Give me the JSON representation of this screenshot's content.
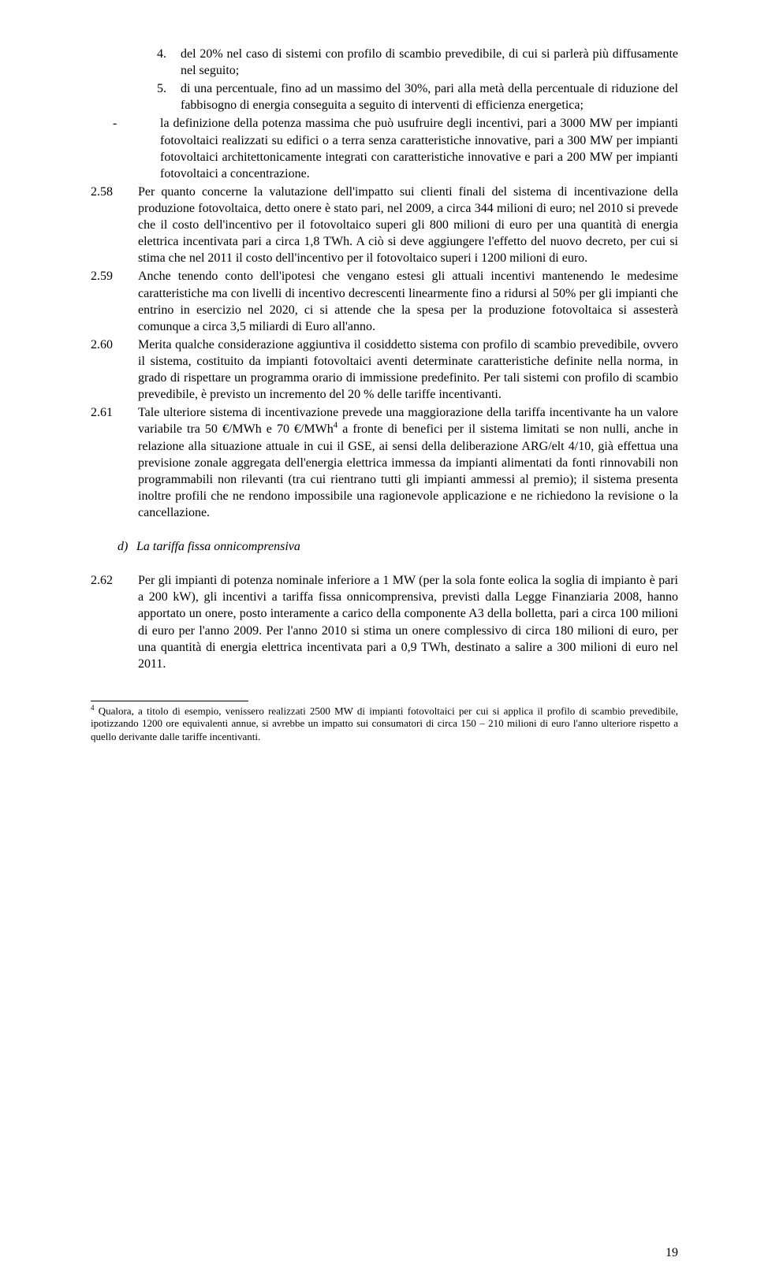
{
  "list": {
    "item4": {
      "marker": "4.",
      "text": "del 20% nel caso di sistemi con profilo di scambio prevedibile, di cui si parlerà più diffusamente nel seguito;"
    },
    "item5": {
      "marker": "5.",
      "text": "di una percentuale, fino ad un massimo del 30%, pari alla metà della percentuale di riduzione del fabbisogno di energia conseguita a seguito di interventi di efficienza energetica;"
    },
    "itemDash": {
      "marker": "-",
      "text": "la definizione della potenza massima che può usufruire degli incentivi, pari a 3000 MW per impianti fotovoltaici realizzati su edifici o a terra senza caratteristiche innovative, pari a 300 MW per impianti fotovoltaici architettonicamente integrati con caratteristiche innovative e pari a 200 MW per impianti fotovoltaici a concentrazione."
    }
  },
  "paras": {
    "p258": {
      "num": "2.58",
      "text": "Per quanto concerne la valutazione dell'impatto sui clienti finali del sistema di incentivazione della produzione fotovoltaica, detto onere è stato pari, nel 2009, a circa 344 milioni di euro; nel 2010 si prevede che il costo dell'incentivo per il fotovoltaico superi gli 800 milioni di euro per una quantità di energia elettrica incentivata pari a circa 1,8 TWh. A ciò si deve aggiungere l'effetto del nuovo decreto, per cui si stima che nel 2011 il costo dell'incentivo per il fotovoltaico superi i 1200 milioni di euro."
    },
    "p259": {
      "num": "2.59",
      "text": "Anche tenendo conto dell'ipotesi che vengano estesi gli attuali incentivi mantenendo le medesime caratteristiche ma con livelli di incentivo decrescenti linearmente fino a ridursi al 50% per gli impianti che entrino in esercizio nel 2020, ci si attende che la spesa per la produzione fotovoltaica si assesterà comunque a circa 3,5 miliardi di Euro all'anno."
    },
    "p260": {
      "num": "2.60",
      "text": "Merita qualche considerazione aggiuntiva il cosiddetto sistema con profilo di scambio prevedibile, ovvero il sistema, costituito da impianti fotovoltaici aventi determinate caratteristiche definite nella norma, in grado di rispettare un programma orario di immissione predefinito. Per tali sistemi con profilo di scambio prevedibile, è previsto un incremento del 20 % delle tariffe incentivanti."
    },
    "p261": {
      "num": "2.61",
      "pre": "Tale ulteriore sistema di incentivazione prevede una maggiorazione della tariffa incentivante ha un valore variabile tra 50 €/MWh e 70 €/MWh",
      "sup": "4",
      "post": " a fronte di benefici per il sistema limitati se non nulli, anche in relazione alla situazione attuale in cui il GSE, ai sensi della deliberazione ARG/elt 4/10, già effettua una previsione zonale aggregata dell'energia elettrica immessa da impianti alimentati da fonti rinnovabili non programmabili non rilevanti (tra cui rientrano tutti gli impianti ammessi al premio); il sistema presenta inoltre profili che ne rendono impossibile una ragionevole applicazione e ne richiedono la revisione o la cancellazione."
    },
    "p262": {
      "num": "2.62",
      "text": "Per gli impianti di potenza nominale inferiore a 1 MW (per la sola fonte eolica la soglia di impianto è pari a 200 kW), gli incentivi a tariffa fissa onnicomprensiva, previsti dalla Legge Finanziaria 2008, hanno apportato un onere, posto interamente a carico della componente A3 della bolletta, pari a circa 100 milioni di euro per l'anno 2009. Per l'anno 2010 si stima un onere complessivo di circa 180 milioni di euro, per una quantità di energia elettrica incentivata pari a 0,9 TWh, destinato a salire a 300 milioni di euro nel 2011."
    }
  },
  "heading": {
    "marker": "d)",
    "text": "La tariffa fissa onnicomprensiva"
  },
  "footnote": {
    "marker": "4",
    "text": "  Qualora, a titolo di esempio, venissero realizzati 2500 MW di impianti fotovoltaici per cui si applica il profilo di scambio prevedibile, ipotizzando 1200 ore equivalenti annue, si avrebbe un impatto sui consumatori di circa 150 – 210 milioni di euro l'anno ulteriore rispetto a quello derivante dalle tariffe incentivanti."
  },
  "pageNumber": "19"
}
